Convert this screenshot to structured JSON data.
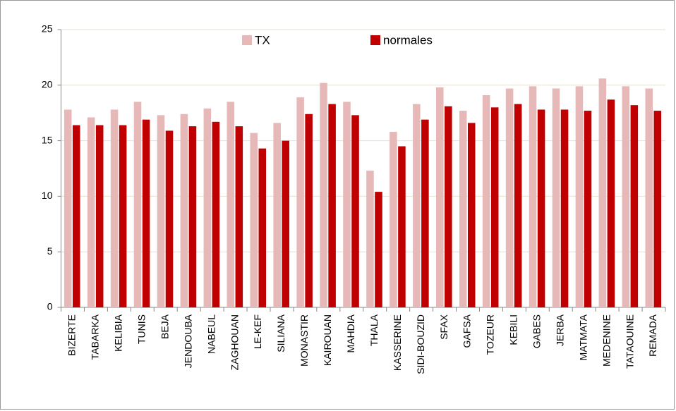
{
  "chart_data": {
    "type": "bar",
    "categories": [
      "BIZERTE",
      "TABARKA",
      "KELIBIA",
      "TUNIS",
      "BEJA",
      "JENDOUBA",
      "NABEUL",
      "ZAGHOUAN",
      "LE-KEF",
      "SILIANA",
      "MONASTIR",
      "KAIROUAN",
      "MAHDIA",
      "THALA",
      "KASSERINE",
      "SIDI-BOUZID",
      "SFAX",
      "GAFSA",
      "TOZEUR",
      "KEBILI",
      "GABES",
      "JERBA",
      "MATMATA",
      "MEDENINE",
      "TATAOUINE",
      "REMADA"
    ],
    "series": [
      {
        "name": "TX",
        "color": "#e6b8b7",
        "values": [
          17.8,
          17.1,
          17.8,
          18.5,
          17.3,
          17.4,
          17.9,
          18.5,
          15.7,
          16.6,
          18.9,
          20.2,
          18.5,
          12.3,
          15.8,
          18.3,
          19.8,
          17.7,
          19.1,
          19.7,
          19.9,
          19.7,
          19.9,
          20.6,
          19.9,
          19.7
        ]
      },
      {
        "name": "normales",
        "color": "#c00000",
        "values": [
          16.4,
          16.4,
          16.4,
          16.9,
          15.9,
          16.3,
          16.7,
          16.3,
          14.3,
          15.0,
          17.4,
          18.3,
          17.3,
          10.4,
          14.5,
          16.9,
          18.1,
          16.6,
          18.0,
          18.3,
          17.8,
          17.8,
          17.7,
          18.7,
          18.2,
          17.7
        ]
      }
    ],
    "ylim": [
      0,
      25
    ],
    "yticks": [
      0,
      5,
      10,
      15,
      20,
      25
    ],
    "grid": true
  }
}
